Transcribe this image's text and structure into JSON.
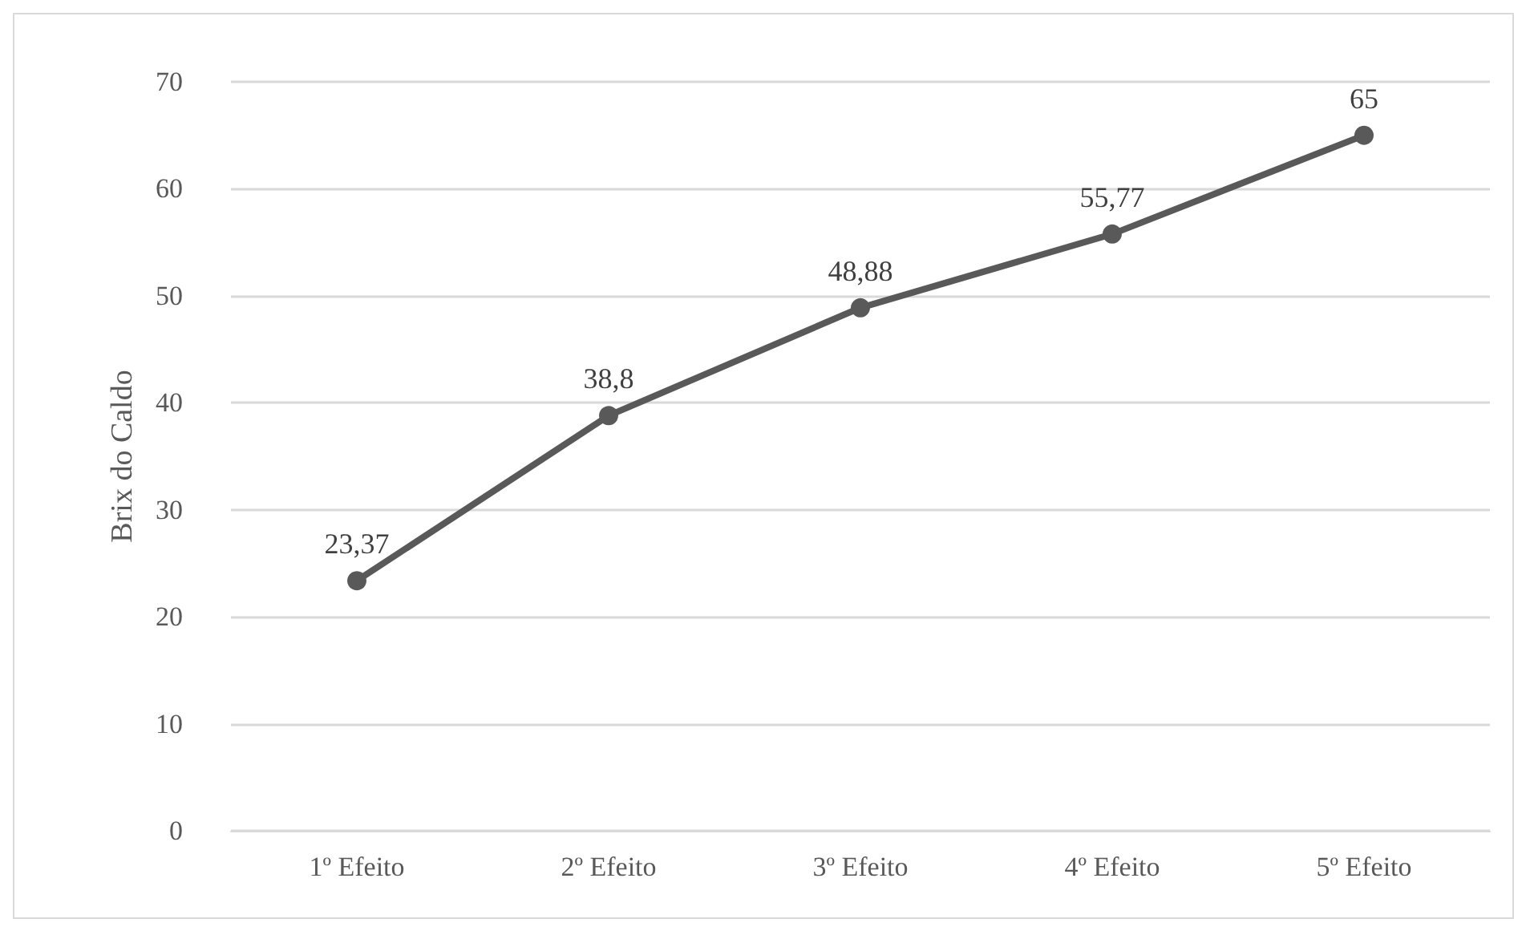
{
  "chart_data": {
    "type": "line",
    "ylabel": "Brix do Caldo",
    "categories": [
      "1º Efeito",
      "2º Efeito",
      "3º Efeito",
      "4º Efeito",
      "5º Efeito"
    ],
    "series": [
      {
        "color": "#595959",
        "values": [
          23.37,
          38.8,
          48.88,
          55.77,
          65
        ],
        "value_labels": [
          "23,37",
          "38,8",
          "48,88",
          "55,77",
          "65"
        ]
      }
    ],
    "ylim": [
      0,
      70
    ],
    "yticks": [
      0,
      10,
      20,
      30,
      40,
      50,
      60,
      70
    ],
    "grid": "y",
    "marker": "circle",
    "line_style": "solid"
  }
}
